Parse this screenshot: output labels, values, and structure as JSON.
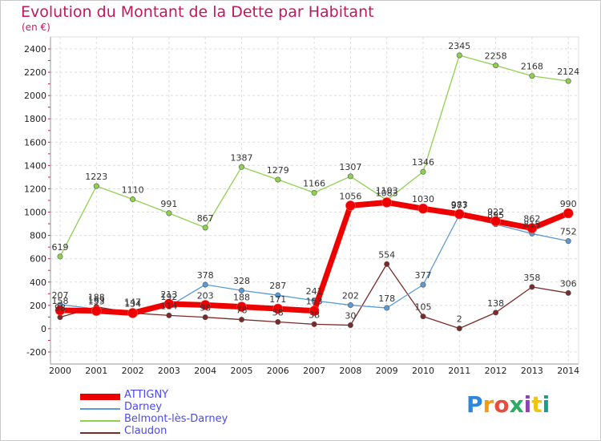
{
  "chart_data": {
    "type": "line",
    "title": "Evolution du Montant de la Dette par Habitant",
    "subtitle": "(en €)",
    "x": [
      "2000",
      "2001",
      "2002",
      "2003",
      "2004",
      "2005",
      "2006",
      "2007",
      "2008",
      "2009",
      "2010",
      "2011",
      "2012",
      "2013",
      "2014"
    ],
    "yticks": [
      -200,
      0,
      200,
      400,
      600,
      800,
      1000,
      1200,
      1400,
      1600,
      1800,
      2000,
      2200,
      2400
    ],
    "ylim": [
      -200,
      2400
    ],
    "legend_position": "bottom-left",
    "series": [
      {
        "name": "ATTIGNY",
        "color": "#ee0000",
        "values": [
          158,
          153,
          134,
          213,
          203,
          188,
          171,
          153,
          1056,
          1083,
          1030,
          983,
          922,
          862,
          990
        ]
      },
      {
        "name": "Darney",
        "color": "#5b9bd5",
        "values": [
          207,
          169,
          147,
          192,
          378,
          328,
          287,
          241,
          202,
          178,
          377,
          977,
          895,
          815,
          752
        ]
      },
      {
        "name": "Belmont-lès-Darney",
        "color": "#8fd14f",
        "values": [
          619,
          1223,
          1110,
          991,
          867,
          1387,
          1279,
          1166,
          1307,
          1103,
          1346,
          2345,
          2258,
          2168,
          2124
        ]
      },
      {
        "name": "Claudon",
        "color": "#7b2a2a",
        "values": [
          98,
          188,
          134,
          114,
          98,
          78,
          58,
          38,
          30,
          554,
          105,
          2,
          138,
          358,
          306
        ]
      }
    ]
  },
  "brand": {
    "logo_text": "Proxiti"
  }
}
